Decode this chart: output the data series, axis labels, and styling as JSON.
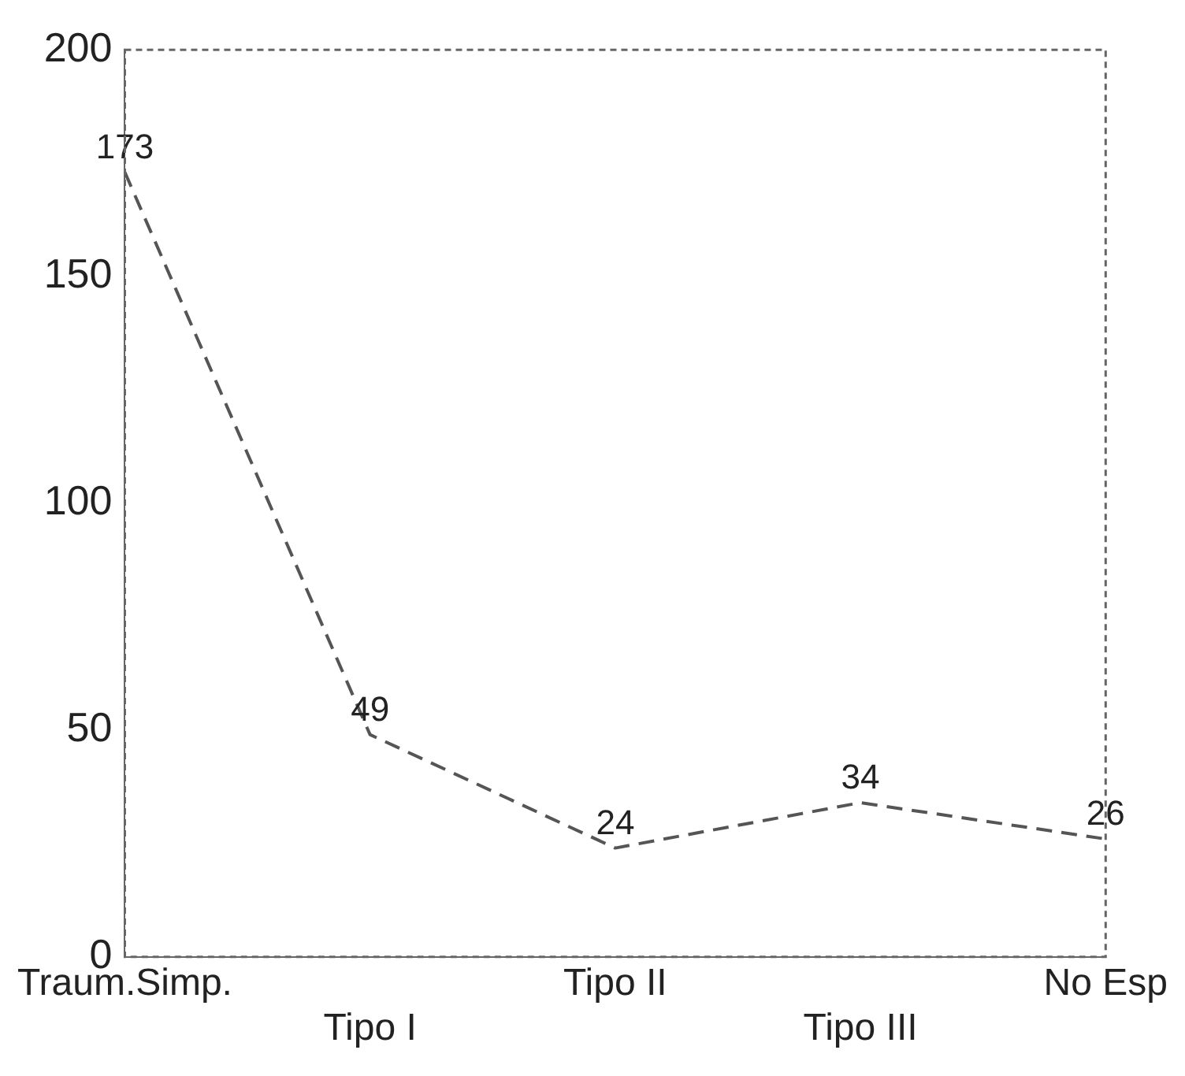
{
  "chart_data": {
    "type": "line",
    "categories": [
      "Traum.Simp.",
      "Tipo I",
      "Tipo II",
      "Tipo III",
      "No Esp"
    ],
    "values": [
      173,
      49,
      24,
      34,
      26
    ],
    "color": "#555555",
    "ylim": [
      0,
      200
    ],
    "yticks": [
      0,
      50,
      100,
      150,
      200
    ],
    "grid": false,
    "legend": false,
    "marker": "none",
    "line_style": "dashed",
    "data_labels": true
  }
}
